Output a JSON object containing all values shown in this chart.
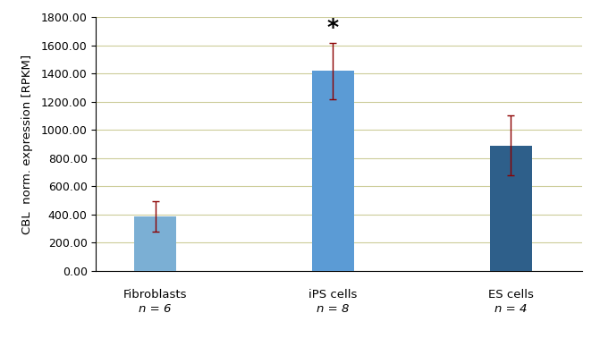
{
  "categories": [
    "Fibroblasts",
    "iPS cells",
    "ES cells"
  ],
  "n_labels": [
    "n = 6",
    "n = 8",
    "n = 4"
  ],
  "values": [
    385,
    1420,
    890
  ],
  "errors": [
    110,
    200,
    215
  ],
  "bar_colors": [
    "#7BAFD4",
    "#5B9BD5",
    "#2E5F8A"
  ],
  "error_color": "#8B0000",
  "ylabel": "CBL  norm. expression [RPKM]",
  "ylim": [
    0,
    1800
  ],
  "yticks": [
    0,
    200,
    400,
    600,
    800,
    1000,
    1200,
    1400,
    1600,
    1800
  ],
  "ytick_labels": [
    "0.00",
    "200.00",
    "400.00",
    "600.00",
    "800.00",
    "1000.00",
    "1200.00",
    "1400.00",
    "1600.00",
    "1800.00"
  ],
  "significance_bar_index": 1,
  "significance_symbol": "*",
  "background_color": "#FFFFFF",
  "grid_color": "#CCCC99",
  "bar_width": 0.35,
  "x_positions": [
    0.5,
    2.0,
    3.5
  ]
}
